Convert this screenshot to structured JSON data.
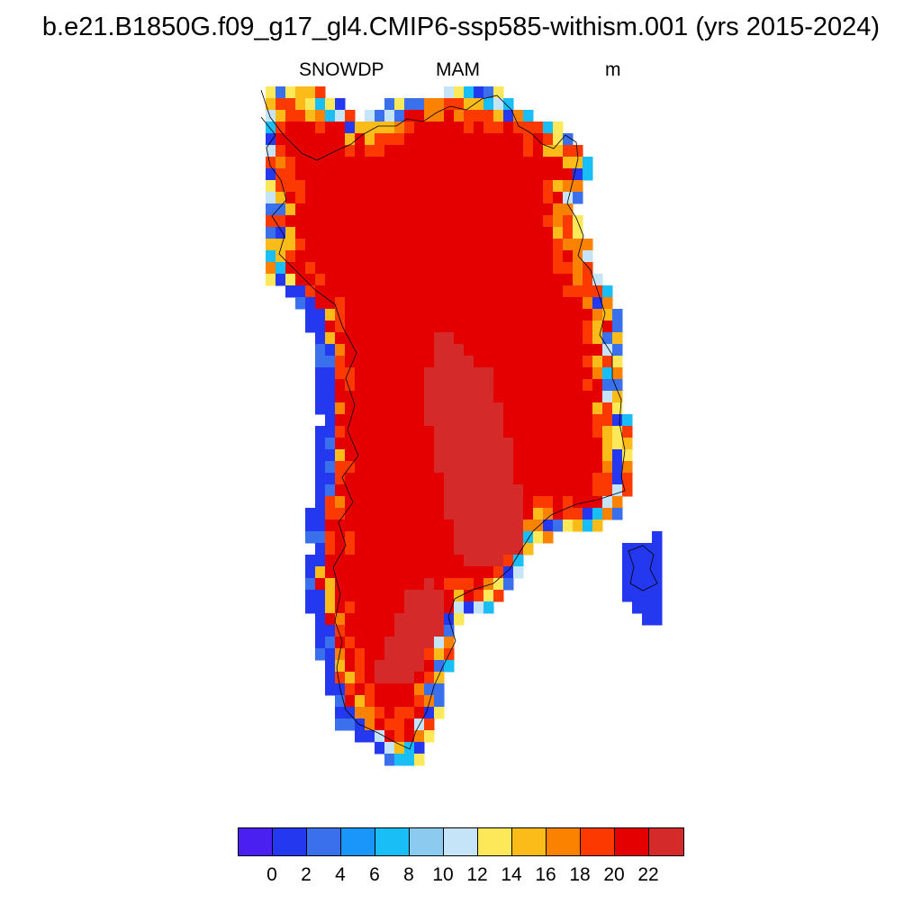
{
  "title": "b.e21.B1850G.f09_g17_gl4.CMIP6-ssp585-withism.001 (yrs 2015-2024)",
  "variable": "SNOWDP",
  "season": "MAM",
  "units": "m",
  "legend": {
    "colors": [
      "#4a20f0",
      "#2438f0",
      "#3a70ec",
      "#1a96fa",
      "#1abef6",
      "#8ccaf0",
      "#c6e4f8",
      "#fde85a",
      "#fbbc1a",
      "#fb8200",
      "#fc3a00",
      "#e40000",
      "#d42a2a"
    ],
    "tick_labels": [
      "0",
      "2",
      "4",
      "6",
      "8",
      "10",
      "12",
      "14",
      "16",
      "18",
      "20",
      "22"
    ]
  },
  "chart_data": {
    "type": "heatmap",
    "field": "SNOWDP",
    "season": "MAM",
    "units": "m",
    "region": "Greenland",
    "levels": [
      0,
      2,
      4,
      6,
      8,
      10,
      12,
      14,
      16,
      18,
      20,
      22
    ],
    "colorbar_colors": [
      "#4a20f0",
      "#2438f0",
      "#3a70ec",
      "#1a96fa",
      "#1abef6",
      "#8ccaf0",
      "#c6e4f8",
      "#fde85a",
      "#fbbc1a",
      "#fb8200",
      "#fc3a00",
      "#e40000",
      "#d42a2a"
    ],
    "value_pattern": "interior above 20 m with a central core above 22 m; values near 0 along the west and south-east coastal margins"
  }
}
